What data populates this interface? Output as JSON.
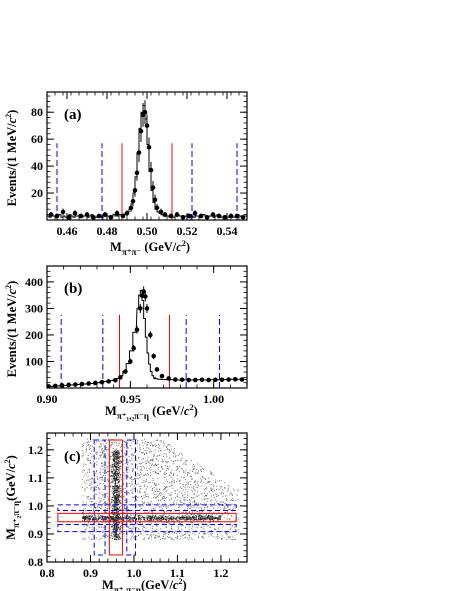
{
  "colors": {
    "frame": "#000000",
    "histogram": "#000000",
    "signal_cut": "#ff0000",
    "sideband_cut": "#0000ff",
    "markers": "#000000"
  },
  "chart_data": [
    {
      "panel": "(a)",
      "type": "line",
      "xlabel": {
        "main": "M",
        "sub": "π⁺π⁻",
        "unit": " (GeV/",
        "unit_var": "c",
        "unit_pow": "2",
        "unit_close": ")"
      },
      "ylabel": {
        "main": "Events/(1 MeV/",
        "var": "c",
        "pow": "2",
        "close": ")"
      },
      "xlim": [
        0.45,
        0.55
      ],
      "ylim": [
        0,
        95
      ],
      "x_ticks": [
        0.46,
        0.48,
        0.5,
        0.52,
        0.54
      ],
      "x_tick_labels": [
        "0.46",
        "0.48",
        "0.50",
        "0.52",
        "0.54"
      ],
      "y_ticks": [
        20,
        40,
        60,
        80
      ],
      "y_tick_labels": [
        "20",
        "40",
        "60",
        "80"
      ],
      "signal_cuts": [
        0.4875,
        0.5125
      ],
      "sideband_cuts": [
        0.455,
        0.4775,
        0.5225,
        0.545
      ],
      "histogram_x": [
        0.4505,
        0.4515,
        0.4525,
        0.4535,
        0.4545,
        0.4555,
        0.4565,
        0.4575,
        0.4585,
        0.4595,
        0.4605,
        0.4615,
        0.4625,
        0.4635,
        0.4645,
        0.4655,
        0.4665,
        0.4675,
        0.4685,
        0.4695,
        0.4705,
        0.4715,
        0.4725,
        0.4735,
        0.4745,
        0.4755,
        0.4765,
        0.4775,
        0.4785,
        0.4795,
        0.4805,
        0.4815,
        0.4825,
        0.4835,
        0.4845,
        0.4855,
        0.4865,
        0.4875,
        0.4885,
        0.4895,
        0.4905,
        0.4915,
        0.4925,
        0.4935,
        0.4945,
        0.4955,
        0.4965,
        0.4975,
        0.4985,
        0.4995,
        0.5005,
        0.5015,
        0.5025,
        0.5035,
        0.5045,
        0.5055,
        0.5065,
        0.5075,
        0.5085,
        0.5095,
        0.5105,
        0.5115,
        0.5125,
        0.5135,
        0.5145,
        0.5155,
        0.5165,
        0.5175,
        0.5185,
        0.5195,
        0.5205,
        0.5215,
        0.5225,
        0.5235,
        0.5245,
        0.5255,
        0.5265,
        0.5275,
        0.5285,
        0.5295,
        0.5305,
        0.5315,
        0.5325,
        0.5335,
        0.5345,
        0.5355,
        0.5365,
        0.5375,
        0.5385,
        0.5395,
        0.5405,
        0.5415,
        0.5425,
        0.5435,
        0.5445,
        0.5455,
        0.5465,
        0.5475,
        0.5485,
        0.5495
      ],
      "histogram_y": [
        3,
        2,
        4,
        3,
        2,
        3,
        4,
        2,
        3,
        2,
        3,
        4,
        3,
        2,
        3,
        3,
        4,
        2,
        3,
        3,
        2,
        3,
        4,
        3,
        2,
        3,
        3,
        2,
        3,
        4,
        3,
        2,
        3,
        4,
        3,
        3,
        4,
        3,
        4,
        5,
        6,
        8,
        12,
        20,
        32,
        50,
        68,
        80,
        85,
        75,
        56,
        36,
        22,
        13,
        8,
        6,
        5,
        4,
        3,
        3,
        3,
        2,
        3,
        2,
        3,
        4,
        3,
        3,
        2,
        3,
        3,
        4,
        3,
        2,
        3,
        3,
        2,
        3,
        4,
        3,
        2,
        3,
        3,
        2,
        3,
        4,
        3,
        2,
        3,
        3,
        2,
        3,
        3,
        2,
        3,
        4,
        3,
        2,
        3,
        3
      ],
      "points_x": [
        0.452,
        0.455,
        0.458,
        0.461,
        0.464,
        0.467,
        0.47,
        0.473,
        0.476,
        0.479,
        0.482,
        0.485,
        0.488,
        0.49,
        0.492,
        0.493,
        0.494,
        0.495,
        0.496,
        0.497,
        0.498,
        0.499,
        0.5,
        0.501,
        0.502,
        0.503,
        0.504,
        0.505,
        0.507,
        0.509,
        0.512,
        0.515,
        0.518,
        0.521,
        0.524,
        0.527,
        0.53,
        0.533,
        0.536,
        0.539,
        0.542,
        0.545,
        0.548
      ],
      "points_y": [
        4,
        3,
        6,
        2,
        5,
        3,
        4,
        2,
        3,
        4,
        2,
        5,
        3,
        5,
        9,
        14,
        22,
        35,
        50,
        66,
        78,
        80,
        70,
        54,
        37,
        24,
        15,
        9,
        6,
        4,
        3,
        4,
        2,
        3,
        5,
        3,
        2,
        4,
        3,
        2,
        3,
        3,
        2
      ],
      "errors_y": [
        2,
        1.8,
        2.4,
        1.4,
        2.2,
        1.7,
        2,
        1.4,
        1.7,
        2,
        1.4,
        2.2,
        1.7,
        2.2,
        3,
        3.7,
        4.7,
        5.9,
        7,
        8.1,
        8.8,
        8.9,
        8.4,
        7.3,
        6.1,
        4.9,
        3.9,
        3,
        2.4,
        2,
        1.7,
        2,
        1.4,
        1.7,
        2.2,
        1.7,
        1.4,
        2,
        1.7,
        1.4,
        1.7,
        1.7,
        1.4
      ]
    },
    {
      "panel": "(b)",
      "type": "line",
      "xlabel": {
        "main": "M",
        "sub": "π⁺₁,₂π⁻η",
        "unit": " (GeV/",
        "unit_var": "c",
        "unit_pow": "2",
        "unit_close": ")"
      },
      "ylabel": {
        "main": "Events/(1 MeV/",
        "var": "c",
        "pow": "2",
        "close": ")"
      },
      "xlim": [
        0.9,
        1.02
      ],
      "ylim": [
        0,
        460
      ],
      "x_ticks": [
        0.9,
        0.95,
        1.0
      ],
      "x_tick_labels": [
        "0.90",
        "0.95",
        "1.00"
      ],
      "y_ticks": [
        100,
        200,
        300,
        400
      ],
      "y_tick_labels": [
        "100",
        "200",
        "300",
        "400"
      ],
      "signal_cuts": [
        0.9435,
        0.9735
      ],
      "sideband_cuts": [
        0.9085,
        0.9335,
        0.9835,
        1.0035
      ],
      "histogram_x": [
        0.9005,
        0.9025,
        0.9045,
        0.9065,
        0.9085,
        0.9105,
        0.9125,
        0.9145,
        0.9165,
        0.9185,
        0.9205,
        0.9225,
        0.9245,
        0.9265,
        0.9285,
        0.9305,
        0.9325,
        0.9345,
        0.9365,
        0.9385,
        0.9405,
        0.9425,
        0.9445,
        0.9465,
        0.9485,
        0.9505,
        0.9525,
        0.9545,
        0.9555,
        0.9565,
        0.9575,
        0.9585,
        0.9595,
        0.9605,
        0.9615,
        0.9625,
        0.9635,
        0.9645,
        0.9655,
        0.9675,
        0.9695,
        0.9715,
        0.9735,
        0.9755,
        0.9775,
        0.9795,
        0.9815,
        0.9835,
        0.9855,
        0.9875,
        0.9895,
        0.9915,
        0.9935,
        0.9955,
        0.9975,
        0.9995,
        1.0015,
        1.0035,
        1.0055,
        1.0075,
        1.0095,
        1.0115,
        1.0135,
        1.0155,
        1.0175,
        1.0195
      ],
      "histogram_y": [
        5,
        6,
        7,
        8,
        9,
        10,
        10,
        12,
        12,
        13,
        14,
        15,
        15,
        17,
        18,
        20,
        22,
        24,
        26,
        28,
        30,
        36,
        46,
        62,
        92,
        140,
        210,
        300,
        350,
        368,
        330,
        262,
        192,
        132,
        90,
        62,
        46,
        38,
        35,
        33,
        32,
        32,
        31,
        31,
        30,
        30,
        30,
        31,
        30,
        30,
        31,
        31,
        30,
        30,
        31,
        31,
        31,
        31,
        32,
        32,
        32,
        33,
        33,
        33,
        32,
        32
      ],
      "points_x": [
        0.901,
        0.905,
        0.909,
        0.913,
        0.917,
        0.921,
        0.925,
        0.929,
        0.933,
        0.937,
        0.941,
        0.944,
        0.947,
        0.95,
        0.952,
        0.954,
        0.956,
        0.957,
        0.958,
        0.959,
        0.96,
        0.962,
        0.964,
        0.966,
        0.969,
        0.973,
        0.977,
        0.981,
        0.985,
        0.989,
        0.993,
        0.997,
        1.001,
        1.005,
        1.009,
        1.013,
        1.017
      ],
      "points_y": [
        6,
        8,
        10,
        12,
        13,
        15,
        17,
        19,
        22,
        25,
        29,
        40,
        62,
        100,
        150,
        220,
        300,
        348,
        364,
        345,
        300,
        200,
        120,
        70,
        45,
        36,
        32,
        31,
        30,
        30,
        31,
        30,
        31,
        31,
        32,
        33,
        32
      ],
      "errors_y": [
        2.4,
        2.8,
        3.2,
        3.5,
        3.6,
        3.9,
        4.1,
        4.4,
        4.7,
        5,
        5.4,
        6.3,
        7.9,
        10,
        12.2,
        14.8,
        17.3,
        18.7,
        19.1,
        18.6,
        17.3,
        14.1,
        11,
        8.4,
        6.7,
        6,
        5.7,
        5.6,
        5.5,
        5.5,
        5.6,
        5.5,
        5.6,
        5.6,
        5.7,
        5.7,
        5.7
      ]
    },
    {
      "panel": "(c)",
      "type": "scatter",
      "xlabel": {
        "main": "M",
        "sub": "π⁺₁π⁻η",
        "unit": "(GeV/",
        "unit_var": "c",
        "unit_pow": "2",
        "unit_close": ")"
      },
      "ylabel": {
        "main": "M",
        "sub": "π⁺₂π⁻η",
        "unit": "(GeV/",
        "unit_var": "c",
        "unit_pow": "2",
        "unit_close": ")"
      },
      "xlim": [
        0.8,
        1.26
      ],
      "ylim": [
        0.8,
        1.26
      ],
      "x_ticks": [
        0.8,
        0.9,
        1.0,
        1.1,
        1.2
      ],
      "x_tick_labels": [
        "0.8",
        "0.9",
        "1.0",
        "1.1",
        "1.2"
      ],
      "y_ticks": [
        0.8,
        0.9,
        1.0,
        1.1,
        1.2
      ],
      "y_tick_labels": [
        "0.8",
        "0.9",
        "1.0",
        "1.1",
        "1.2"
      ],
      "signal_band": [
        0.9435,
        0.9735
      ],
      "sideband_bands": [
        [
          0.9085,
          0.9335
        ],
        [
          0.9835,
          1.0035
        ]
      ],
      "band_extent": [
        0.825,
        1.235
      ],
      "n_background_points": 2600,
      "n_band_points": 1500
    }
  ]
}
